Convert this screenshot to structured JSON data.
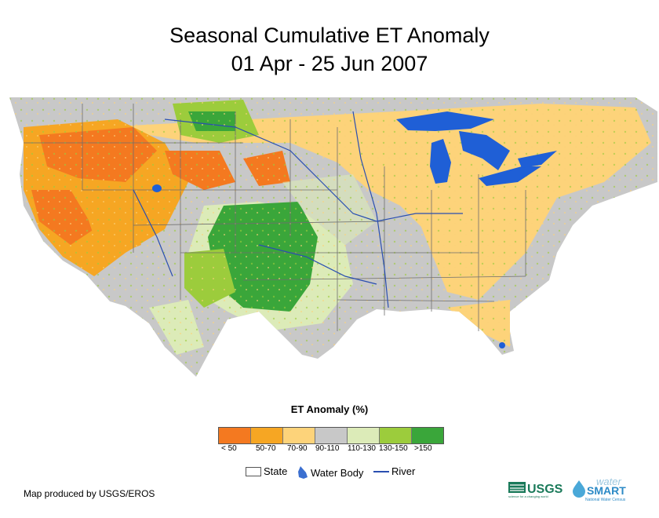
{
  "title": {
    "line1": "Seasonal Cumulative ET Anomaly",
    "line2": "01 Apr - 25 Jun 2007"
  },
  "legend": {
    "title": "ET Anomaly (%)",
    "classes": [
      {
        "label": "< 50",
        "color": "#f47920"
      },
      {
        "label": "50-70",
        "color": "#f6a623"
      },
      {
        "label": "70-90",
        "color": "#fdd37a"
      },
      {
        "label": "90-110",
        "color": "#c8c8c8"
      },
      {
        "label": "110-130",
        "color": "#dcebb8"
      },
      {
        "label": "130-150",
        "color": "#9ccc3c"
      },
      {
        "label": ">150",
        "color": "#3aa63a"
      }
    ],
    "symbols": [
      {
        "label": "State",
        "icon": "state-box-icon"
      },
      {
        "label": "Water Body",
        "icon": "water-drop-icon"
      },
      {
        "label": "River",
        "icon": "river-line-icon"
      }
    ]
  },
  "credit": "Map produced by USGS/EROS",
  "logos": {
    "usgs": "USGS",
    "usgs_tagline": "science for a changing world",
    "water": "water",
    "smart": "SMART",
    "census": "National Water Census"
  },
  "colors": {
    "water": "#1f5fd6",
    "river": "#2a4fb0",
    "state_line": "#6e6e6e"
  }
}
